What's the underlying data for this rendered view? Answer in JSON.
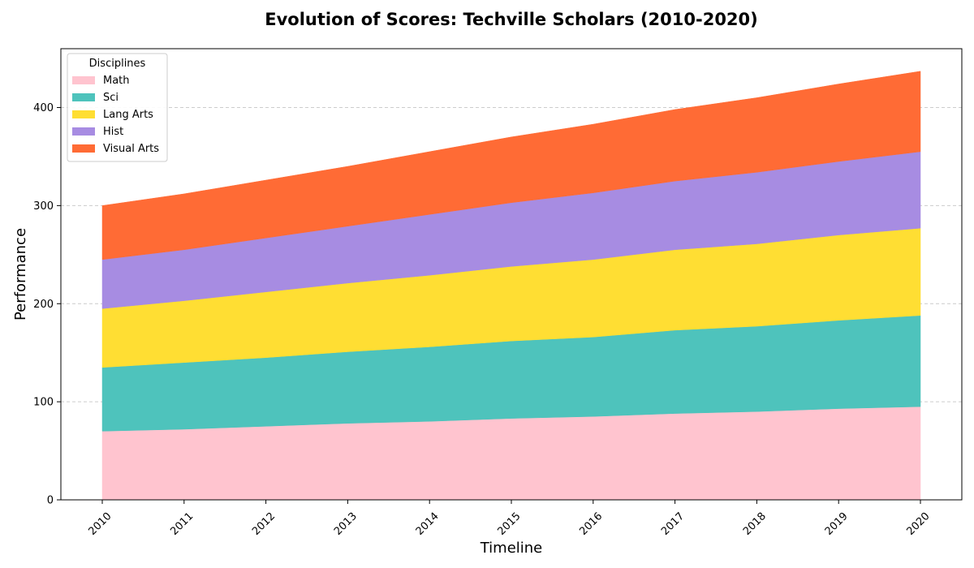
{
  "chart_data": {
    "type": "area",
    "stacked": true,
    "title": "Evolution of Scores: Techville Scholars (2010-2020)",
    "xlabel": "Timeline",
    "ylabel": "Performance",
    "x": [
      "2010",
      "2011",
      "2012",
      "2013",
      "2014",
      "2015",
      "2016",
      "2017",
      "2018",
      "2019",
      "2020"
    ],
    "ylim": [
      0,
      460
    ],
    "yticks": [
      0,
      100,
      200,
      300,
      400
    ],
    "grid": "horizontal-dashed",
    "legend": {
      "title": "Disciplines",
      "placement": "top-left"
    },
    "series": [
      {
        "name": "Math",
        "color": "#FFC4CF",
        "values": [
          70,
          72,
          75,
          78,
          80,
          83,
          85,
          88,
          90,
          93,
          95
        ]
      },
      {
        "name": "Sci",
        "color": "#4EC3BC",
        "values": [
          65,
          68,
          70,
          73,
          76,
          79,
          81,
          85,
          87,
          90,
          93
        ]
      },
      {
        "name": "Lang Arts",
        "color": "#FFDE33",
        "values": [
          60,
          63,
          67,
          70,
          73,
          76,
          79,
          82,
          84,
          87,
          89
        ]
      },
      {
        "name": "Hist",
        "color": "#A78CE2",
        "values": [
          50,
          52,
          55,
          58,
          62,
          65,
          68,
          70,
          73,
          75,
          78
        ]
      },
      {
        "name": "Visual Arts",
        "color": "#FF6B35",
        "values": [
          55,
          57,
          59,
          61,
          64,
          67,
          70,
          73,
          76,
          79,
          82
        ]
      }
    ]
  }
}
